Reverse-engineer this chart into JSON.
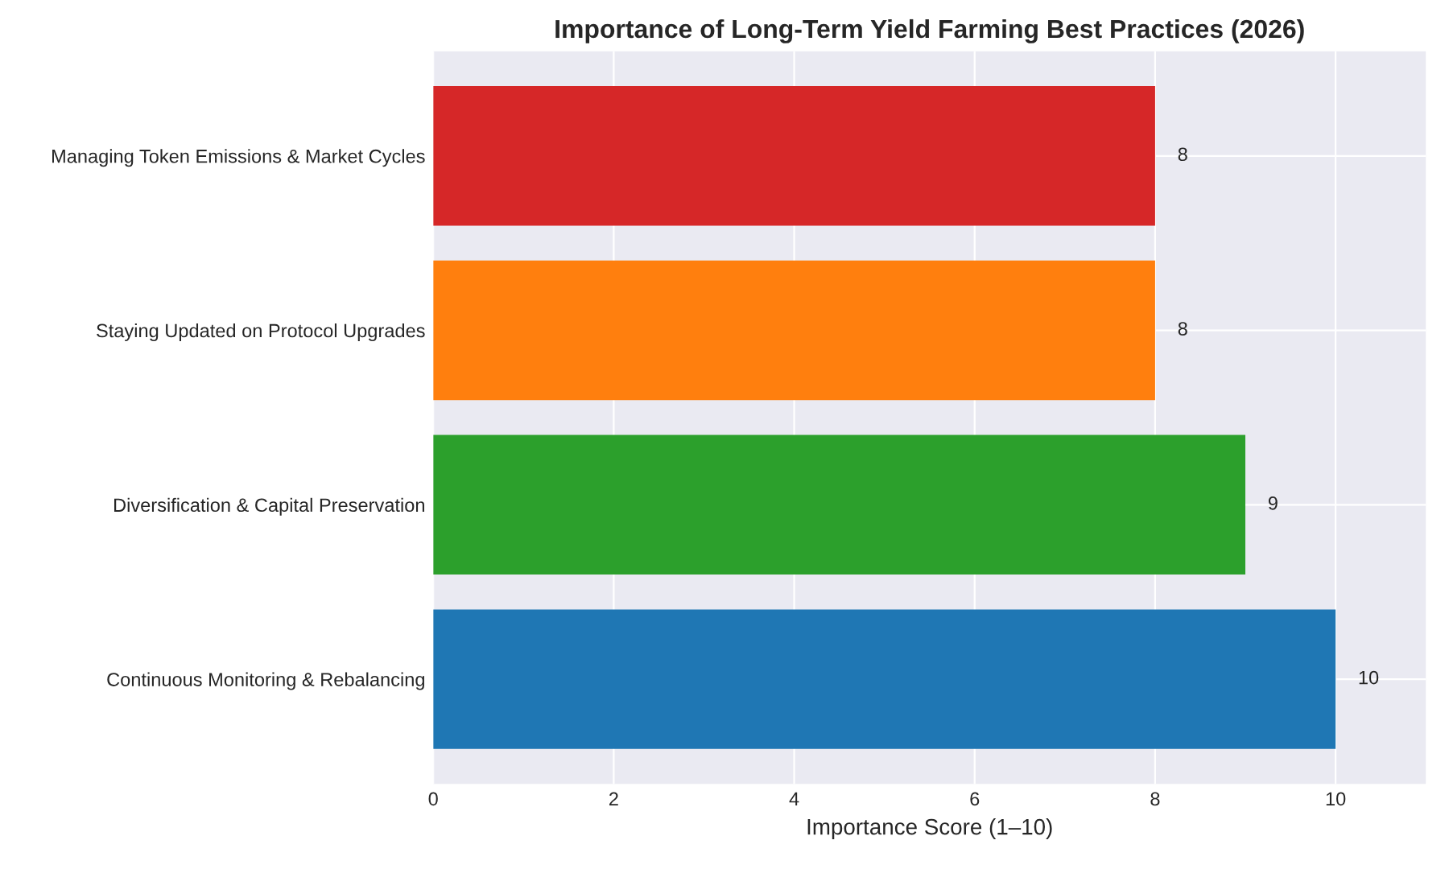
{
  "chart_data": {
    "type": "bar",
    "orientation": "horizontal",
    "title": "Importance of Long-Term Yield Farming Best Practices (2026)",
    "xlabel": "Importance Score (1–10)",
    "categories": [
      "Managing Token Emissions & Market Cycles",
      "Staying Updated on Protocol Upgrades",
      "Diversification & Capital Preservation",
      "Continuous Monitoring & Rebalancing"
    ],
    "values": [
      8,
      8,
      9,
      10
    ],
    "colors": [
      "#d62728",
      "#ff7f0e",
      "#2ca02c",
      "#1f77b4"
    ],
    "xlim": [
      0,
      11
    ],
    "xticks": [
      0,
      2,
      4,
      6,
      8,
      10
    ],
    "grid": true,
    "data_labels": true
  }
}
